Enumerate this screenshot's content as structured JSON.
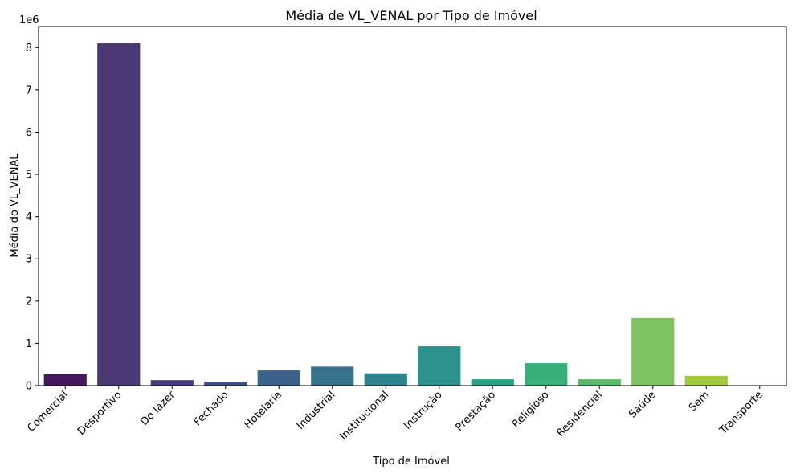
{
  "chart_data": {
    "type": "bar",
    "title": "Média de VL_VENAL por Tipo de Imóvel",
    "xlabel": "Tipo de Imóvel",
    "ylabel": "Média do VL_VENAL",
    "y_offset_label": "1e6",
    "y_scale": 1000000,
    "ylim": [
      0,
      8500000
    ],
    "yticks": [
      0,
      1,
      2,
      3,
      4,
      5,
      6,
      7,
      8
    ],
    "grid": false,
    "legend": "none",
    "categories": [
      "Comercial",
      "Desportivo",
      "Do lazer",
      "Fechado",
      "Hotelaria",
      "Industrial",
      "Institucional",
      "Instrução",
      "Prestação",
      "Religioso",
      "Residencial",
      "Saúde",
      "Sem",
      "Transporte"
    ],
    "values": [
      270000,
      8100000,
      130000,
      90000,
      360000,
      450000,
      290000,
      930000,
      150000,
      530000,
      150000,
      1600000,
      230000,
      10000
    ],
    "colors": [
      "#46195f",
      "#4a3875",
      "#443f7e",
      "#404f86",
      "#3b628a",
      "#36738c",
      "#2f848e",
      "#2b928c",
      "#26a384",
      "#38ae79",
      "#5bb96c",
      "#7ec361",
      "#a1c93b",
      "#c8d634"
    ]
  }
}
